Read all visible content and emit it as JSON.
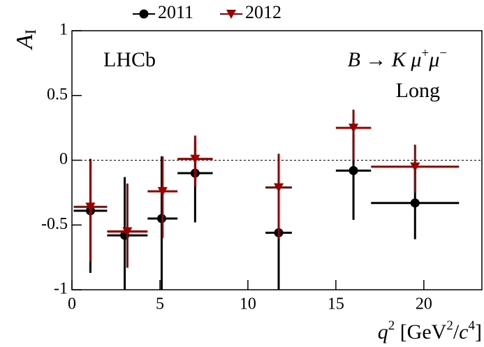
{
  "chart_data": {
    "type": "scatter",
    "y_label": [
      "A",
      "I"
    ],
    "x_label": [
      "q",
      "2",
      " [GeV",
      "2",
      "/",
      "c",
      "4",
      "]"
    ],
    "annotations": {
      "experiment": "LHCb",
      "decay": [
        "B → K μ",
        "+",
        "μ",
        "−"
      ],
      "category": "Long"
    },
    "xlim": [
      0,
      23.3
    ],
    "ylim": [
      -1,
      1
    ],
    "xticks": [
      0,
      5,
      10,
      15,
      20
    ],
    "yticks": [
      -1,
      -0.5,
      0,
      0.5,
      1
    ],
    "reference_line": 0,
    "series": [
      {
        "name": "2011",
        "color": "#000000",
        "marker": "circle",
        "x": [
          1.05,
          3.0,
          5.1,
          7.0,
          11.75,
          16.0,
          19.5
        ],
        "x_low": [
          0.1,
          2,
          4.3,
          6,
          11,
          15,
          17
        ],
        "x_high": [
          2,
          4.3,
          6,
          8,
          12.5,
          17,
          22
        ],
        "values": [
          -0.39,
          -0.58,
          -0.45,
          -0.1,
          -0.56,
          -0.08,
          -0.33
        ],
        "y_low": [
          -0.87,
          -1.1,
          -1.1,
          -0.48,
          -1.1,
          -0.46,
          -0.61
        ],
        "y_high": [
          0.01,
          -0.13,
          0.03,
          0.15,
          0.03,
          0.2,
          -0.07
        ]
      },
      {
        "name": "2012",
        "color": "#990000",
        "marker": "triangle-down",
        "x": [
          1.05,
          3.15,
          5.15,
          7.0,
          11.75,
          16.0,
          19.5
        ],
        "x_low": [
          0.1,
          2,
          4.3,
          6,
          11,
          15,
          17
        ],
        "x_high": [
          2,
          4.3,
          6,
          8,
          12.5,
          17,
          22
        ],
        "values": [
          -0.36,
          -0.55,
          -0.24,
          0.01,
          -0.21,
          0.25,
          -0.05
        ],
        "y_low": [
          -0.78,
          -0.83,
          -0.6,
          -0.2,
          -0.6,
          0.0,
          -0.25
        ],
        "y_high": [
          0.0,
          -0.18,
          0.03,
          0.19,
          0.05,
          0.39,
          0.12
        ]
      }
    ]
  }
}
